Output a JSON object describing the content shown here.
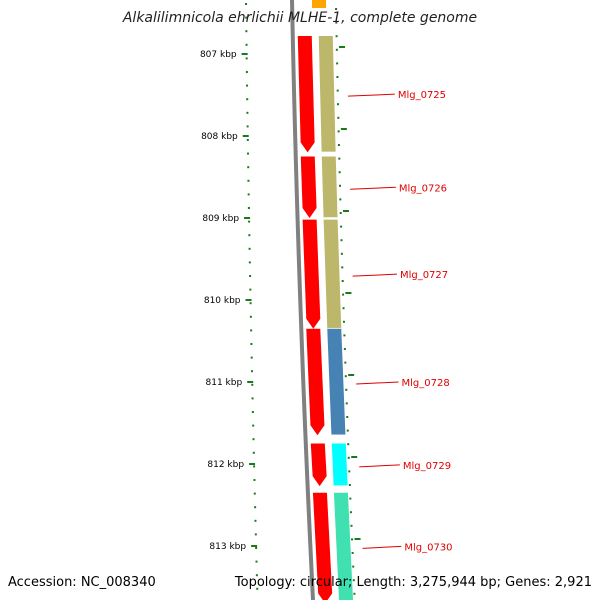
{
  "title": "Alkalilimnicola ehrlichii MLHE-1, complete genome",
  "footer": {
    "accession": "Accession: NC_008340",
    "summary": "Topology: circular; Length: 3,275,944 bp; Genes: 2,921"
  },
  "colors": {
    "backbone": "#808080",
    "ruler": "#1a7a1a",
    "gene_forward": "#ff0000",
    "gene_label": "#e00000",
    "cog_khaki": "#bdb76b",
    "cog_steelblue": "#4682b4",
    "cog_cyan": "#00ffff",
    "cog_orange": "#ffa500",
    "cog_mediumaquamarine": "#40e0b0"
  },
  "ruler": {
    "unit": "kbp",
    "labels": [
      "807 kbp",
      "808 kbp",
      "809 kbp",
      "810 kbp",
      "811 kbp",
      "812 kbp",
      "813 kbp"
    ],
    "values_kbp": [
      807,
      808,
      809,
      810,
      811,
      812,
      813
    ]
  },
  "genes": [
    {
      "name": "Mlg_0725",
      "start_kbp": 806.78,
      "end_kbp": 808.2,
      "strand": "+",
      "cog_color": "cog_khaki"
    },
    {
      "name": "Mlg_0726",
      "start_kbp": 808.25,
      "end_kbp": 809.0,
      "strand": "+",
      "cog_color": "cog_khaki"
    },
    {
      "name": "Mlg_0727",
      "start_kbp": 809.02,
      "end_kbp": 810.35,
      "strand": "+",
      "cog_color": "cog_khaki"
    },
    {
      "name": "Mlg_0728",
      "start_kbp": 810.35,
      "end_kbp": 811.65,
      "strand": "+",
      "cog_color": "cog_steelblue"
    },
    {
      "name": "Mlg_0729",
      "start_kbp": 811.75,
      "end_kbp": 812.27,
      "strand": "+",
      "cog_color": "cog_cyan"
    },
    {
      "name": "Mlg_0730",
      "start_kbp": 812.35,
      "end_kbp": 813.7,
      "strand": "+",
      "cog_color": "cog_mediumaquamarine"
    }
  ]
}
